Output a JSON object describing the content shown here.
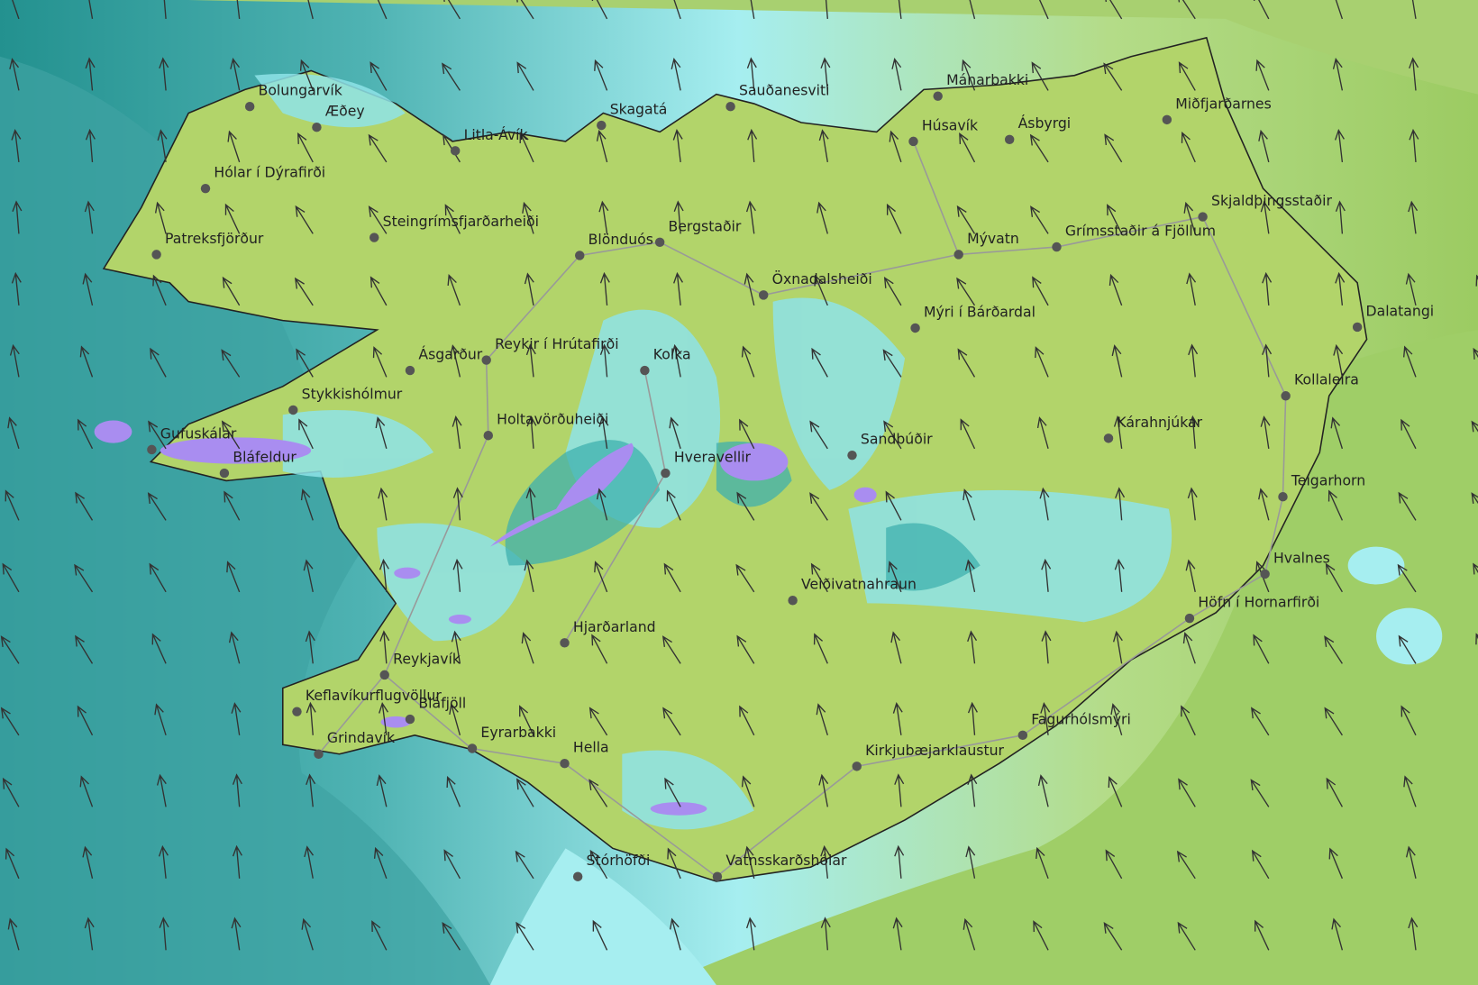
{
  "stations": [
    {
      "name": "Bolungarvík"
    },
    {
      "name": "Æðey"
    },
    {
      "name": "Litla-Ávík"
    },
    {
      "name": "Hólar í Dýrafirði"
    },
    {
      "name": "Patreksfjörður"
    },
    {
      "name": "Steingrímsfjarðarheiði"
    },
    {
      "name": "Skagatá"
    },
    {
      "name": "Sauðanesviti"
    },
    {
      "name": "Mánarbakki"
    },
    {
      "name": "Húsavík"
    },
    {
      "name": "Ásbyrgi"
    },
    {
      "name": "Miðfjarðarnes"
    },
    {
      "name": "Skjaldþingsstaðir"
    },
    {
      "name": "Grímsstaðir á Fjöllum"
    },
    {
      "name": "Mývatn"
    },
    {
      "name": "Blönduós"
    },
    {
      "name": "Bergstaðir"
    },
    {
      "name": "Öxnadalsheiði"
    },
    {
      "name": "Mýri í Bárðardal"
    },
    {
      "name": "Dalatangi"
    },
    {
      "name": "Kollaleira"
    },
    {
      "name": "Ásgarður"
    },
    {
      "name": "Reykir í Hrútafirði"
    },
    {
      "name": "Kolka"
    },
    {
      "name": "Stykkishólmur"
    },
    {
      "name": "Holtavörðuheiði"
    },
    {
      "name": "Gufuskálar"
    },
    {
      "name": "Bláfeldur"
    },
    {
      "name": "Hveravellir"
    },
    {
      "name": "Sandbúðir"
    },
    {
      "name": "Kárahnjúkar"
    },
    {
      "name": "Teigarhorn"
    },
    {
      "name": "Hvalnes"
    },
    {
      "name": "Veiðivatnahraun"
    },
    {
      "name": "Höfn í Hornarfirði"
    },
    {
      "name": "Hjarðarland"
    },
    {
      "name": "Reykjavík"
    },
    {
      "name": "Keflavíkurflugvöllur"
    },
    {
      "name": "Bláfjöll"
    },
    {
      "name": "Grindavík"
    },
    {
      "name": "Eyrarbakki"
    },
    {
      "name": "Hella"
    },
    {
      "name": "Kirkjubæjarklaustur"
    },
    {
      "name": "Fagurhólsmýri"
    },
    {
      "name": "Stórhöfði"
    },
    {
      "name": "Vatnsskarðshólar"
    }
  ]
}
